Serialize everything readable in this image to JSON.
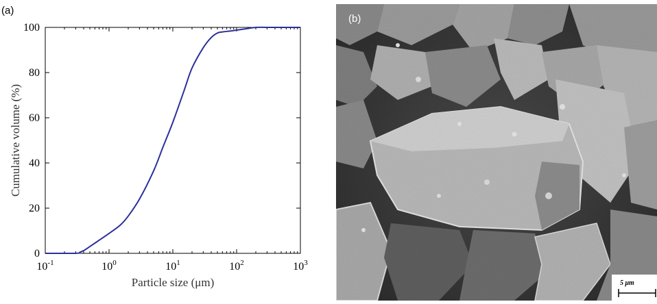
{
  "panel_a": {
    "label": "(a)"
  },
  "panel_b": {
    "label": "(b)",
    "scale_bar_label": "5 μm",
    "image_type": "SEM micrograph of angular particles"
  },
  "chart_data": {
    "type": "line",
    "xscale": "log",
    "xlim": [
      0.1,
      1000
    ],
    "ylim": [
      0,
      100
    ],
    "xlabel": "Particle size (μm)",
    "ylabel": "Cumulative volume (%)",
    "x_ticks": [
      {
        "value": 0.1,
        "base": "10",
        "exp": "-1"
      },
      {
        "value": 1,
        "base": "10",
        "exp": "0"
      },
      {
        "value": 10,
        "base": "10",
        "exp": "1"
      },
      {
        "value": 100,
        "base": "10",
        "exp": "2"
      },
      {
        "value": 1000,
        "base": "10",
        "exp": "3"
      }
    ],
    "y_ticks": [
      "0",
      "20",
      "40",
      "60",
      "80",
      "100"
    ],
    "y_tick_values": [
      0,
      20,
      40,
      60,
      80,
      100
    ],
    "grid": false,
    "line_color": "#2b2f9a",
    "series": [
      {
        "x": [
          0.1,
          0.3,
          0.35,
          0.4,
          0.5,
          0.7,
          1.0,
          1.5,
          2.0,
          3.0,
          5.0,
          7.0,
          10,
          15,
          20,
          30,
          40,
          50,
          60,
          80,
          100,
          150,
          200,
          300,
          500,
          1000
        ],
        "y": [
          0,
          0,
          0.5,
          1.2,
          3.0,
          5.8,
          8.8,
          12.5,
          16.5,
          24.0,
          36.5,
          47.0,
          58.0,
          72.0,
          82.0,
          91.0,
          95.5,
          97.5,
          98.0,
          98.4,
          98.8,
          99.5,
          100,
          100,
          100,
          100
        ]
      }
    ]
  }
}
